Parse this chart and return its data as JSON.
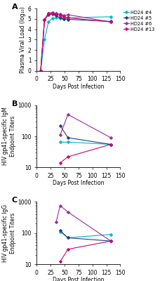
{
  "panel_A": {
    "ylabel": "Plasma Viral Load (log₁₀)",
    "xlabel": "Days Post Infection",
    "xlim": [
      0,
      150
    ],
    "ylim": [
      0,
      6
    ],
    "yticks": [
      0,
      1,
      2,
      3,
      4,
      5,
      6
    ],
    "xticks": [
      0,
      25,
      50,
      75,
      100,
      125,
      150
    ],
    "series": [
      {
        "label": "HD24 #4",
        "color": "#00b4c8",
        "marker": "D",
        "x": [
          7,
          14,
          21,
          28,
          35,
          42,
          49,
          56,
          133
        ],
        "y": [
          0,
          3.0,
          4.7,
          5.05,
          5.1,
          5.05,
          5.0,
          5.1,
          5.2
        ]
      },
      {
        "label": "HD24 #5",
        "color": "#1c3d8a",
        "marker": "D",
        "x": [
          7,
          14,
          21,
          28,
          35,
          42,
          49,
          56,
          133
        ],
        "y": [
          0,
          4.9,
          5.4,
          5.45,
          5.3,
          5.1,
          5.0,
          4.95,
          4.75
        ]
      },
      {
        "label": "HD24 #6",
        "color": "#9b2ca0",
        "marker": "D",
        "x": [
          7,
          14,
          21,
          28,
          35,
          42,
          49,
          56,
          133
        ],
        "y": [
          0,
          4.95,
          5.55,
          5.6,
          5.5,
          5.45,
          5.3,
          5.4,
          4.7
        ]
      },
      {
        "label": "HD24 #13",
        "color": "#d4006a",
        "marker": "D",
        "x": [
          7,
          14,
          21,
          28,
          35,
          42,
          49,
          56,
          133
        ],
        "y": [
          0,
          4.9,
          5.5,
          5.55,
          5.45,
          5.35,
          5.2,
          5.1,
          4.7
        ]
      }
    ]
  },
  "panel_B": {
    "ylabel": "HIV gp41-specific IgM\nEndpoint Titers",
    "xlabel": "Days Post Infection",
    "xlim": [
      0,
      150
    ],
    "ylim": [
      10,
      1000
    ],
    "xticks": [
      0,
      25,
      50,
      75,
      100,
      125,
      150
    ],
    "series": [
      {
        "label": "HD24 #4",
        "color": "#00b4c8",
        "marker": "D",
        "x": [
          42,
          56,
          133
        ],
        "y": [
          65,
          65,
          55
        ]
      },
      {
        "label": "HD24 #5",
        "color": "#1c3d8a",
        "marker": "D",
        "x": [
          42,
          56,
          133
        ],
        "y": [
          220,
          90,
          55
        ]
      },
      {
        "label": "HD24 #6",
        "color": "#9b2ca0",
        "marker": "D",
        "x": [
          42,
          56,
          133
        ],
        "y": [
          110,
          500,
          90
        ]
      },
      {
        "label": "HD24 #13",
        "color": "#d4006a",
        "marker": "D",
        "x": [
          42,
          56,
          133
        ],
        "y": [
          14,
          22,
          55
        ]
      }
    ]
  },
  "panel_C": {
    "ylabel": "HIV gp41-specific IgG\nEndpoint Titers",
    "xlabel": "Days Post Infection",
    "xlim": [
      0,
      150
    ],
    "ylim": [
      10,
      1000
    ],
    "xticks": [
      0,
      25,
      50,
      75,
      100,
      125,
      150
    ],
    "series": [
      {
        "label": "HD24 #4",
        "color": "#00b4c8",
        "marker": "D",
        "x": [
          42,
          56,
          133
        ],
        "y": [
          110,
          70,
          90
        ]
      },
      {
        "label": "HD24 #5",
        "color": "#1c3d8a",
        "marker": "D",
        "x": [
          42,
          56,
          133
        ],
        "y": [
          120,
          70,
          55
        ]
      },
      {
        "label": "HD24 #6",
        "color": "#9b2ca0",
        "marker": "D",
        "x": [
          35,
          42,
          56,
          133
        ],
        "y": [
          230,
          750,
          470,
          55
        ]
      },
      {
        "label": "HD24 #13",
        "color": "#d4006a",
        "marker": "D",
        "x": [
          42,
          56,
          133
        ],
        "y": [
          12,
          30,
          55
        ]
      }
    ]
  },
  "legend_labels": [
    "HD24 #4",
    "HD24 #5",
    "HD24 #6",
    "HD24 #13"
  ],
  "legend_colors": [
    "#00b4c8",
    "#1c3d8a",
    "#9b2ca0",
    "#d4006a"
  ],
  "figsize": [
    2.38,
    4.0
  ],
  "dpi": 100
}
